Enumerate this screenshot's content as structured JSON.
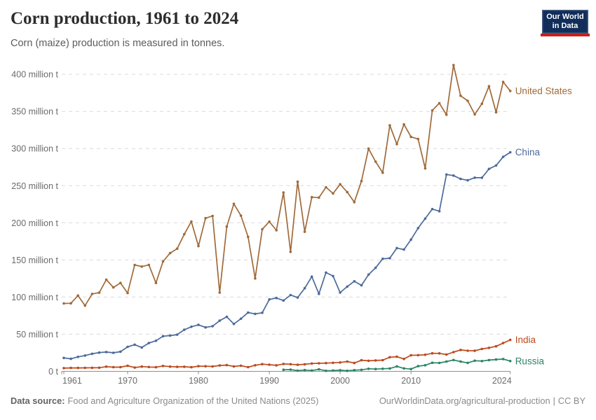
{
  "header": {
    "title": "Corn production, 1961 to 2024",
    "subtitle": "Corn (maize) production is measured in tonnes."
  },
  "logo": {
    "line1": "Our World",
    "line2": "in Data",
    "bg_color": "#112D5A",
    "bar_color": "#C4211C"
  },
  "footer": {
    "source_label": "Data source:",
    "source_text": "Food and Agriculture Organization of the United Nations (2025)",
    "link_text": "OurWorldinData.org/agricultural-production",
    "separator": "|",
    "license_text": "CC BY"
  },
  "chart_data": {
    "type": "line",
    "title": "Corn production, 1961 to 2024",
    "unit": "tonnes (millions)",
    "grid": "horizontal-dashed",
    "legend_position": "end-of-line-labels",
    "xlim": [
      1961,
      2024
    ],
    "ylim": [
      0,
      400
    ],
    "y_ticks": [
      {
        "value": 0,
        "label": "0 t"
      },
      {
        "value": 50,
        "label": "50 million t"
      },
      {
        "value": 100,
        "label": "100 million t"
      },
      {
        "value": 150,
        "label": "150 million t"
      },
      {
        "value": 200,
        "label": "200 million t"
      },
      {
        "value": 250,
        "label": "250 million t"
      },
      {
        "value": 300,
        "label": "300 million t"
      },
      {
        "value": 350,
        "label": "350 million t"
      },
      {
        "value": 400,
        "label": "400 million t"
      }
    ],
    "x_ticks": [
      {
        "value": 1961,
        "label": "1961"
      },
      {
        "value": 1970,
        "label": "1970"
      },
      {
        "value": 1980,
        "label": "1980"
      },
      {
        "value": 1990,
        "label": "1990"
      },
      {
        "value": 2000,
        "label": "2000"
      },
      {
        "value": 2010,
        "label": "2010"
      },
      {
        "value": 2024,
        "label": "2024"
      }
    ],
    "years": [
      1961,
      1962,
      1963,
      1964,
      1965,
      1966,
      1967,
      1968,
      1969,
      1970,
      1971,
      1972,
      1973,
      1974,
      1975,
      1976,
      1977,
      1978,
      1979,
      1980,
      1981,
      1982,
      1983,
      1984,
      1985,
      1986,
      1987,
      1988,
      1989,
      1990,
      1991,
      1992,
      1993,
      1994,
      1995,
      1996,
      1997,
      1998,
      1999,
      2000,
      2001,
      2002,
      2003,
      2004,
      2005,
      2006,
      2007,
      2008,
      2009,
      2010,
      2011,
      2012,
      2013,
      2014,
      2015,
      2016,
      2017,
      2018,
      2019,
      2020,
      2021,
      2022,
      2023,
      2024
    ],
    "series": [
      {
        "name": "United States",
        "color": "#A06A39",
        "start_year": 1961,
        "values": [
          91.4,
          91.6,
          102.1,
          88.5,
          104.2,
          105.9,
          123.5,
          113.0,
          119.0,
          105.5,
          143.3,
          141.1,
          143.4,
          119.0,
          148.0,
          159.2,
          165.2,
          184.6,
          201.7,
          168.6,
          206.2,
          209.2,
          106.0,
          194.9,
          225.5,
          209.6,
          181.1,
          125.2,
          191.3,
          201.5,
          189.9,
          240.8,
          160.9,
          255.3,
          187.9,
          234.5,
          233.9,
          247.9,
          239.5,
          251.9,
          241.4,
          227.8,
          256.2,
          299.9,
          282.3,
          267.5,
          331.2,
          305.9,
          332.5,
          315.6,
          312.8,
          273.2,
          351.3,
          361.1,
          345.5,
          412.3,
          371.1,
          364.3,
          346.0,
          360.3,
          383.9,
          348.8,
          389.7,
          377.6
        ]
      },
      {
        "name": "China",
        "color": "#4C6A9C",
        "start_year": 1961,
        "values": [
          18.1,
          16.9,
          19.5,
          21.3,
          23.7,
          25.3,
          26.0,
          25.0,
          26.5,
          33.0,
          35.9,
          32.1,
          38.1,
          41.2,
          47.3,
          48.2,
          49.4,
          56.0,
          60.0,
          62.6,
          59.2,
          60.8,
          68.2,
          73.4,
          63.8,
          70.9,
          79.2,
          77.4,
          78.9,
          96.8,
          98.8,
          95.4,
          102.7,
          99.3,
          112.0,
          127.5,
          104.3,
          133.0,
          128.3,
          106.0,
          114.1,
          121.3,
          115.8,
          130.3,
          139.4,
          151.6,
          152.3,
          166.0,
          164.0,
          177.5,
          192.8,
          205.7,
          218.5,
          215.6,
          265.0,
          263.6,
          259.1,
          257.2,
          260.8,
          260.7,
          272.6,
          277.2,
          288.8,
          294.9
        ]
      },
      {
        "name": "India",
        "color": "#BC4A1E",
        "start_year": 1961,
        "values": [
          4.3,
          4.6,
          4.6,
          4.7,
          4.8,
          4.9,
          6.3,
          5.7,
          5.7,
          7.5,
          5.1,
          6.4,
          5.8,
          5.6,
          7.3,
          6.4,
          6.0,
          6.2,
          5.6,
          7.0,
          6.9,
          6.6,
          7.9,
          8.4,
          6.6,
          7.6,
          5.7,
          8.2,
          9.7,
          9.0,
          8.1,
          10.0,
          9.6,
          8.9,
          9.5,
          10.6,
          10.8,
          11.1,
          11.5,
          12.0,
          13.2,
          11.2,
          15.0,
          14.2,
          14.7,
          15.1,
          19.0,
          19.7,
          16.7,
          21.7,
          21.8,
          22.3,
          24.3,
          24.2,
          22.6,
          25.9,
          28.8,
          27.8,
          27.7,
          30.2,
          31.7,
          33.7,
          38.1,
          42.3
        ]
      },
      {
        "name": "Russia",
        "color": "#2C8465",
        "start_year": 1992,
        "values": [
          2.2,
          2.4,
          0.9,
          1.7,
          1.1,
          2.7,
          0.8,
          1.1,
          1.5,
          0.8,
          1.6,
          2.1,
          3.5,
          3.1,
          3.5,
          3.9,
          6.7,
          4.0,
          3.1,
          7.0,
          8.2,
          11.6,
          11.3,
          13.2,
          15.3,
          13.2,
          11.4,
          14.3,
          13.9,
          15.2,
          15.9,
          16.6,
          13.9
        ]
      }
    ]
  }
}
